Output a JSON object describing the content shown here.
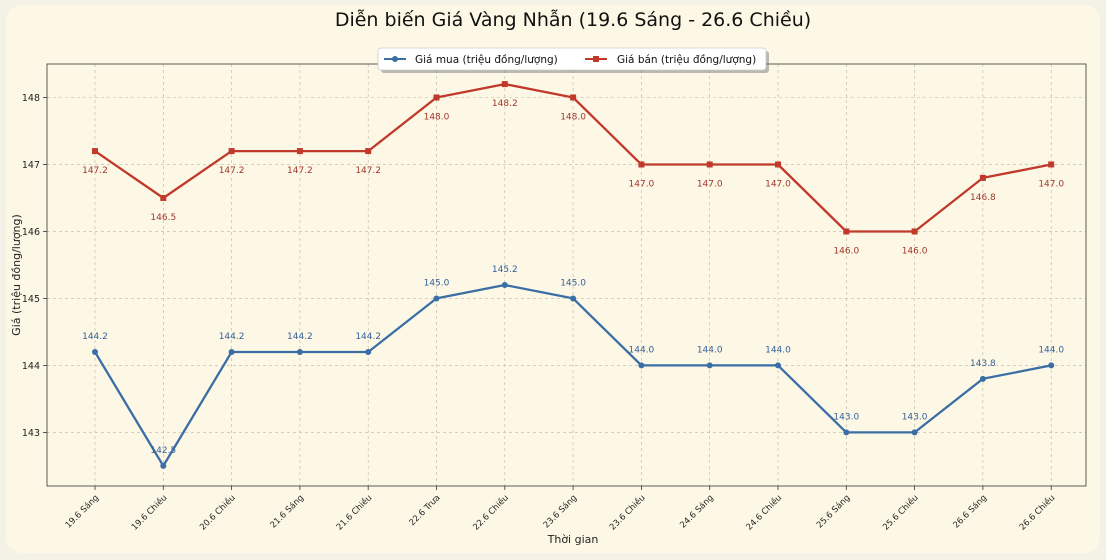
{
  "chart_data": {
    "type": "line",
    "title": "Diễn biến Giá Vàng Nhẫn (19.6 Sáng - 26.6 Chiều)",
    "xlabel": "Thời gian",
    "ylabel": "Giá (triệu đồng/lượng)",
    "categories": [
      "19.6 Sáng",
      "19.6 Chiều",
      "20.6 Chiều",
      "21.6 Sáng",
      "21.6 Chiều",
      "22.6 Trưa",
      "22.6 Chiều",
      "23.6 Sáng",
      "23.6 Chiều",
      "24.6 Sáng",
      "24.6 Chiều",
      "25.6 Sáng",
      "25.6 Chiều",
      "26.6 Sáng",
      "26.6 Chiều"
    ],
    "ylim": [
      142.2,
      148.5
    ],
    "yticks": [
      143,
      144,
      145,
      146,
      147,
      148
    ],
    "grid": true,
    "legend_position": "top-center",
    "series": [
      {
        "name": "Giá mua (triệu đồng/lượng)",
        "color": "#3a6ea5",
        "marker": "circle",
        "values": [
          144.2,
          142.5,
          144.2,
          144.2,
          144.2,
          145.0,
          145.2,
          145.0,
          144.0,
          144.0,
          144.0,
          143.0,
          143.0,
          143.8,
          144.0
        ],
        "labels": [
          "144.2",
          "142.5",
          "144.2",
          "144.2",
          "144.2",
          "145.0",
          "145.2",
          "145.0",
          "144.0",
          "144.0",
          "144.0",
          "143.0",
          "143.0",
          "143.8",
          "144.0"
        ]
      },
      {
        "name": "Giá bán (triệu đồng/lượng)",
        "color": "#c0392b",
        "marker": "square",
        "values": [
          147.2,
          146.5,
          147.2,
          147.2,
          147.2,
          148.0,
          148.2,
          148.0,
          147.0,
          147.0,
          147.0,
          146.0,
          146.0,
          146.8,
          147.0
        ],
        "labels": [
          "147.2",
          "146.5",
          "147.2",
          "147.2",
          "147.2",
          "148.0",
          "148.2",
          "148.0",
          "147.0",
          "147.0",
          "147.0",
          "146.0",
          "146.0",
          "146.8",
          "147.0"
        ]
      }
    ]
  }
}
